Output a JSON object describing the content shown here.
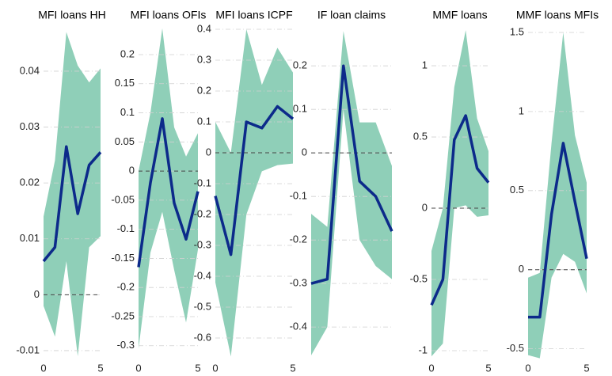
{
  "chart_data": [
    {
      "type": "line",
      "title": "MFI loans HH",
      "x": [
        0,
        1,
        2,
        3,
        4,
        5
      ],
      "values": [
        0.006,
        0.0085,
        0.0265,
        0.0145,
        0.0232,
        0.0255
      ],
      "upper": [
        0.014,
        0.024,
        0.047,
        0.041,
        0.038,
        0.0405
      ],
      "lower": [
        -0.002,
        -0.0075,
        0.006,
        -0.011,
        0.0085,
        0.0105
      ],
      "color": "#0c2a8a",
      "band_color": "#8fcfb8",
      "xlim": [
        0,
        5
      ],
      "xticks": [
        0,
        5
      ],
      "ylim": [
        -0.011,
        0.0475
      ],
      "yticks": [
        -0.01,
        0,
        0.01,
        0.02,
        0.03,
        0.04
      ],
      "hline": 0,
      "grid": true
    },
    {
      "type": "line",
      "title": "MFI loans OFIs",
      "x": [
        0,
        1,
        2,
        3,
        4,
        5
      ],
      "values": [
        -0.165,
        -0.02,
        0.09,
        -0.055,
        -0.117,
        -0.035
      ],
      "upper": [
        0.0,
        0.1,
        0.245,
        0.075,
        0.025,
        0.065
      ],
      "lower": [
        -0.305,
        -0.14,
        -0.07,
        -0.17,
        -0.26,
        -0.135
      ],
      "color": "#0c2a8a",
      "band_color": "#8fcfb8",
      "xlim": [
        0,
        5
      ],
      "xticks": [
        0,
        5
      ],
      "ylim": [
        -0.318,
        0.2435
      ],
      "yticks": [
        -0.3,
        -0.25,
        -0.2,
        -0.15,
        -0.1,
        -0.05,
        0,
        0.05,
        0.1,
        0.15,
        0.2
      ],
      "hline": 0,
      "grid": true
    },
    {
      "type": "line",
      "title": "MFI loans ICPF",
      "x": [
        0,
        1,
        2,
        3,
        4,
        5
      ],
      "values": [
        -0.14,
        -0.33,
        0.1,
        0.08,
        0.15,
        0.11
      ],
      "upper": [
        0.1,
        0.0,
        0.4,
        0.22,
        0.34,
        0.26
      ],
      "lower": [
        -0.42,
        -0.66,
        -0.2,
        -0.06,
        -0.04,
        -0.035
      ],
      "color": "#0c2a8a",
      "band_color": "#8fcfb8",
      "xlim": [
        0,
        5
      ],
      "xticks": [
        0,
        5
      ],
      "ylim": [
        -0.659,
        0.4
      ],
      "yticks": [
        -0.6,
        -0.5,
        -0.4,
        -0.3,
        -0.2,
        -0.1,
        0,
        0.1,
        0.2,
        0.3,
        0.4
      ],
      "hline": 0,
      "grid": true
    },
    {
      "type": "line",
      "title": "IF loan claims",
      "x": [
        0,
        1,
        2,
        3,
        4,
        5
      ],
      "values": [
        -0.3,
        -0.29,
        0.2,
        -0.065,
        -0.1,
        -0.18
      ],
      "upper": [
        -0.14,
        -0.17,
        0.28,
        0.07,
        0.07,
        -0.03
      ],
      "lower": [
        -0.465,
        -0.4,
        0.1,
        -0.2,
        -0.26,
        -0.29
      ],
      "color": "#0c2a8a",
      "band_color": "#8fcfb8",
      "xlim": [
        0,
        5
      ],
      "ylim": [
        -0.467,
        0.284
      ],
      "yticks": [
        -0.4,
        -0.3,
        -0.2,
        -0.1,
        0,
        0.1,
        0.2
      ],
      "hline": 0,
      "grid": true
    },
    {
      "type": "line",
      "title": "MMF loans",
      "x": [
        0,
        1,
        2,
        3,
        4,
        5
      ],
      "values": [
        -0.68,
        -0.5,
        0.48,
        0.65,
        0.28,
        0.18
      ],
      "upper": [
        -0.3,
        0.0,
        0.85,
        1.25,
        0.63,
        0.4
      ],
      "lower": [
        -1.04,
        -0.95,
        0.0,
        0.02,
        -0.06,
        -0.05
      ],
      "color": "#0c2a8a",
      "band_color": "#8fcfb8",
      "xlim": [
        0,
        5
      ],
      "xticks": [
        0,
        5
      ],
      "ylim": [
        -1.039,
        1.256
      ],
      "yticks": [
        -1,
        -0.5,
        0,
        0.5,
        1
      ],
      "hline": 0,
      "grid": true
    },
    {
      "type": "line",
      "title": "MMF loans MFIs",
      "x": [
        0,
        1,
        2,
        3,
        4,
        5
      ],
      "values": [
        -0.3,
        -0.3,
        0.35,
        0.8,
        0.43,
        0.07
      ],
      "upper": [
        -0.05,
        -0.02,
        0.8,
        1.5,
        0.85,
        0.55
      ],
      "lower": [
        -0.54,
        -0.56,
        -0.05,
        0.1,
        0.05,
        -0.15
      ],
      "color": "#0c2a8a",
      "band_color": "#8fcfb8",
      "xlim": [
        0,
        5
      ],
      "xticks": [
        0,
        5
      ],
      "ylim": [
        -0.547,
        1.52
      ],
      "yticks": [
        -0.5,
        0,
        0.5,
        1,
        1.5
      ],
      "hline": 0,
      "grid": true
    }
  ]
}
